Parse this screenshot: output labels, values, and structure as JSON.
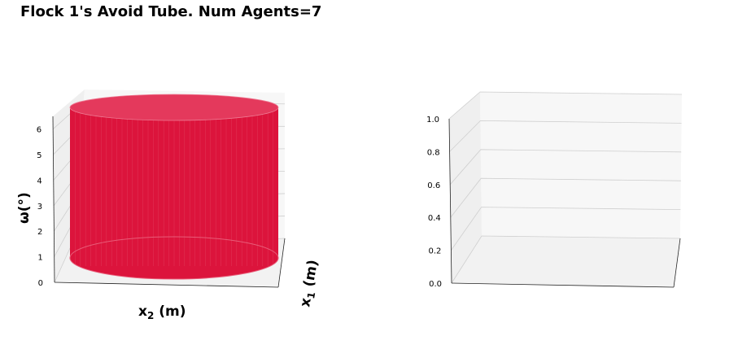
{
  "title": "Flock 1's Avoid Tube. Num Agents=7",
  "colors": {
    "tube": "#dc143c",
    "pane_light": "#f7f7f7",
    "pane_side": "#efefef",
    "pane_floor": "#f2f2f2",
    "grid": "#cfcfcf",
    "axis_line": "#222222"
  },
  "chart_data": [
    {
      "type": "surface",
      "title": "",
      "xlabel": "x$_2$ (m)",
      "xlabel_parts": {
        "base": "x",
        "sub": "2",
        "rest": " (m)"
      },
      "ylabel": "x$_1$ (m)",
      "ylabel_parts": {
        "base": "x",
        "sub": "1",
        "rest": " (m)"
      },
      "zlabel": "ω(°)",
      "zticks": [
        "0",
        "1",
        "2",
        "3",
        "4",
        "5",
        "6"
      ],
      "zlim": [
        0,
        6.5
      ],
      "surface": {
        "shape": "cylinder",
        "color": "#dc143c",
        "z_range": [
          0,
          6.2
        ]
      },
      "grid": true
    },
    {
      "type": "surface",
      "title": "",
      "xlabel": "",
      "ylabel": "",
      "zlabel": "",
      "zticks": [
        "0.0",
        "0.2",
        "0.4",
        "0.6",
        "0.8",
        "1.0"
      ],
      "zlim": [
        0,
        1.0
      ],
      "surface": null,
      "grid": true
    }
  ]
}
